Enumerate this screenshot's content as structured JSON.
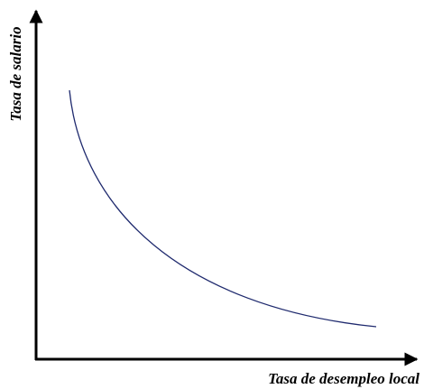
{
  "x_axis_label": "Tasa de desempleo local",
  "y_axis_label": "Tasa de salario"
}
